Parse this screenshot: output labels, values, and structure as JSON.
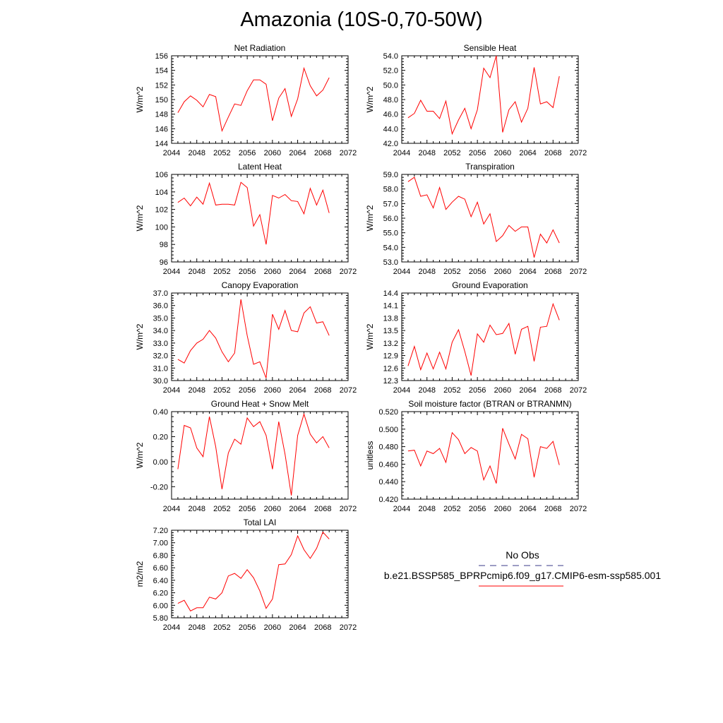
{
  "figure": {
    "title": "Amazonia (10S-0,70-50W)"
  },
  "legend": {
    "entries": [
      {
        "label": "No Obs",
        "color": "#3a3a8a",
        "dash": true
      },
      {
        "label": "b.e21.BSSP585_BPRPcmip6.f09_g17.CMIP6-esm-ssp585.001",
        "color": "#ff0000",
        "dash": false
      }
    ]
  },
  "chart_data": [
    {
      "type": "line",
      "title": "Net Radiation",
      "xlabel": "",
      "ylabel": "W/m^2",
      "xlim": [
        2044,
        2072
      ],
      "xticks": [
        2044,
        2048,
        2052,
        2056,
        2060,
        2064,
        2068,
        2072
      ],
      "ylim": [
        144,
        156
      ],
      "yticks": [
        "144",
        "146",
        "148",
        "150",
        "152",
        "154",
        "156"
      ],
      "series": [
        {
          "color": "#ff0000",
          "x": [
            2045,
            2046,
            2047,
            2048,
            2049,
            2050,
            2051,
            2052,
            2053,
            2054,
            2055,
            2056,
            2057,
            2058,
            2059,
            2060,
            2061,
            2062,
            2063,
            2064,
            2065,
            2066,
            2067,
            2068,
            2069
          ],
          "values": [
            148.2,
            149.7,
            150.5,
            149.9,
            149.0,
            150.7,
            150.4,
            145.7,
            147.6,
            149.4,
            149.2,
            151.2,
            152.7,
            152.7,
            152.1,
            147.1,
            150.2,
            151.5,
            147.7,
            150.1,
            154.3,
            151.9,
            150.5,
            151.3,
            153.0
          ]
        }
      ]
    },
    {
      "type": "line",
      "title": "Sensible Heat",
      "xlabel": "",
      "ylabel": "W/m^2",
      "xlim": [
        2044,
        2072
      ],
      "xticks": [
        2044,
        2048,
        2052,
        2056,
        2060,
        2064,
        2068,
        2072
      ],
      "ylim": [
        42.0,
        54.0
      ],
      "yticks": [
        "42.0",
        "44.0",
        "46.0",
        "48.0",
        "50.0",
        "52.0",
        "54.0"
      ],
      "series": [
        {
          "color": "#ff0000",
          "x": [
            2045,
            2046,
            2047,
            2048,
            2049,
            2050,
            2051,
            2052,
            2053,
            2054,
            2055,
            2056,
            2057,
            2058,
            2059,
            2060,
            2061,
            2062,
            2063,
            2064,
            2065,
            2066,
            2067,
            2068,
            2069
          ],
          "values": [
            45.5,
            46.1,
            47.9,
            46.4,
            46.4,
            45.4,
            47.8,
            43.3,
            45.2,
            46.8,
            44.0,
            46.6,
            52.3,
            51.0,
            54.0,
            43.5,
            46.6,
            47.7,
            44.9,
            46.8,
            52.4,
            47.4,
            47.7,
            46.9,
            51.2
          ]
        }
      ]
    },
    {
      "type": "line",
      "title": "Latent Heat",
      "xlabel": "",
      "ylabel": "W/m^2",
      "xlim": [
        2044,
        2072
      ],
      "xticks": [
        2044,
        2048,
        2052,
        2056,
        2060,
        2064,
        2068,
        2072
      ],
      "ylim": [
        96,
        106
      ],
      "yticks": [
        "96",
        "98",
        "100",
        "102",
        "104",
        "106"
      ],
      "series": [
        {
          "color": "#ff0000",
          "x": [
            2045,
            2046,
            2047,
            2048,
            2049,
            2050,
            2051,
            2052,
            2053,
            2054,
            2055,
            2056,
            2057,
            2058,
            2059,
            2060,
            2061,
            2062,
            2063,
            2064,
            2065,
            2066,
            2067,
            2068,
            2069
          ],
          "values": [
            102.8,
            103.3,
            102.4,
            103.4,
            102.6,
            105.0,
            102.5,
            102.6,
            102.6,
            102.5,
            105.1,
            104.5,
            100.1,
            101.4,
            98.0,
            103.6,
            103.3,
            103.7,
            103.0,
            102.9,
            101.5,
            104.4,
            102.5,
            104.2,
            101.6
          ]
        }
      ]
    },
    {
      "type": "line",
      "title": "Transpiration",
      "xlabel": "",
      "ylabel": "W/m^2",
      "xlim": [
        2044,
        2072
      ],
      "xticks": [
        2044,
        2048,
        2052,
        2056,
        2060,
        2064,
        2068,
        2072
      ],
      "ylim": [
        53.0,
        59.0
      ],
      "yticks": [
        "53.0",
        "54.0",
        "55.0",
        "56.0",
        "57.0",
        "58.0",
        "59.0"
      ],
      "series": [
        {
          "color": "#ff0000",
          "x": [
            2045,
            2046,
            2047,
            2048,
            2049,
            2050,
            2051,
            2052,
            2053,
            2054,
            2055,
            2056,
            2057,
            2058,
            2059,
            2060,
            2061,
            2062,
            2063,
            2064,
            2065,
            2066,
            2067,
            2068,
            2069
          ],
          "values": [
            58.5,
            58.8,
            57.5,
            57.6,
            56.7,
            58.1,
            56.6,
            57.1,
            57.5,
            57.3,
            56.1,
            57.1,
            55.6,
            56.3,
            54.4,
            54.8,
            55.5,
            55.1,
            55.4,
            55.4,
            53.3,
            54.9,
            54.3,
            55.2,
            54.3
          ]
        }
      ]
    },
    {
      "type": "line",
      "title": "Canopy Evaporation",
      "xlabel": "",
      "ylabel": "W/m^2",
      "xlim": [
        2044,
        2072
      ],
      "xticks": [
        2044,
        2048,
        2052,
        2056,
        2060,
        2064,
        2068,
        2072
      ],
      "ylim": [
        30.0,
        37.0
      ],
      "yticks": [
        "30.0",
        "31.0",
        "32.0",
        "33.0",
        "34.0",
        "35.0",
        "36.0",
        "37.0"
      ],
      "series": [
        {
          "color": "#ff0000",
          "x": [
            2045,
            2046,
            2047,
            2048,
            2049,
            2050,
            2051,
            2052,
            2053,
            2054,
            2055,
            2056,
            2057,
            2058,
            2059,
            2060,
            2061,
            2062,
            2063,
            2064,
            2065,
            2066,
            2067,
            2068,
            2069
          ],
          "values": [
            31.7,
            31.4,
            32.4,
            33.0,
            33.3,
            34.0,
            33.4,
            32.3,
            31.5,
            32.2,
            36.5,
            33.6,
            31.3,
            31.5,
            30.2,
            35.3,
            34.1,
            35.6,
            34.0,
            33.9,
            35.4,
            35.9,
            34.6,
            34.7,
            33.6
          ]
        }
      ]
    },
    {
      "type": "line",
      "title": "Ground Evaporation",
      "xlabel": "",
      "ylabel": "W/m^2",
      "xlim": [
        2044,
        2072
      ],
      "xticks": [
        2044,
        2048,
        2052,
        2056,
        2060,
        2064,
        2068,
        2072
      ],
      "ylim": [
        12.3,
        14.4
      ],
      "yticks": [
        "12.3",
        "12.6",
        "12.9",
        "13.2",
        "13.5",
        "13.8",
        "14.1",
        "14.4"
      ],
      "series": [
        {
          "color": "#ff0000",
          "x": [
            2045,
            2046,
            2047,
            2048,
            2049,
            2050,
            2051,
            2052,
            2053,
            2054,
            2055,
            2056,
            2057,
            2058,
            2059,
            2060,
            2061,
            2062,
            2063,
            2064,
            2065,
            2066,
            2067,
            2068,
            2069
          ],
          "values": [
            12.65,
            13.12,
            12.56,
            12.96,
            12.58,
            12.98,
            12.58,
            13.22,
            13.52,
            13.0,
            12.42,
            13.42,
            13.22,
            13.63,
            13.4,
            13.43,
            13.67,
            12.93,
            13.53,
            13.6,
            12.76,
            13.58,
            13.6,
            14.14,
            13.75
          ]
        }
      ]
    },
    {
      "type": "line",
      "title": "Ground Heat + Snow Melt",
      "xlabel": "",
      "ylabel": "W/m^2",
      "xlim": [
        2044,
        2072
      ],
      "xticks": [
        2044,
        2048,
        2052,
        2056,
        2060,
        2064,
        2068,
        2072
      ],
      "ylim": [
        -0.3,
        0.4
      ],
      "yticks": [
        "-0.20",
        "0.00",
        "0.20",
        "0.40"
      ],
      "series": [
        {
          "color": "#ff0000",
          "x": [
            2045,
            2046,
            2047,
            2048,
            2049,
            2050,
            2051,
            2052,
            2053,
            2054,
            2055,
            2056,
            2057,
            2058,
            2059,
            2060,
            2061,
            2062,
            2063,
            2064,
            2065,
            2066,
            2067,
            2068,
            2069
          ],
          "values": [
            -0.06,
            0.29,
            0.27,
            0.11,
            0.04,
            0.36,
            0.12,
            -0.22,
            0.07,
            0.18,
            0.14,
            0.35,
            0.28,
            0.32,
            0.21,
            -0.06,
            0.32,
            0.06,
            -0.27,
            0.21,
            0.38,
            0.22,
            0.15,
            0.2,
            0.11
          ]
        }
      ]
    },
    {
      "type": "line",
      "title": "Soil moisture factor (BTRAN or BTRANMN)",
      "xlabel": "",
      "ylabel": "unitless",
      "xlim": [
        2044,
        2072
      ],
      "xticks": [
        2044,
        2048,
        2052,
        2056,
        2060,
        2064,
        2068,
        2072
      ],
      "ylim": [
        0.42,
        0.52
      ],
      "yticks": [
        "0.420",
        "0.440",
        "0.460",
        "0.480",
        "0.500",
        "0.520"
      ],
      "series": [
        {
          "color": "#ff0000",
          "x": [
            2045,
            2046,
            2047,
            2048,
            2049,
            2050,
            2051,
            2052,
            2053,
            2054,
            2055,
            2056,
            2057,
            2058,
            2059,
            2060,
            2061,
            2062,
            2063,
            2064,
            2065,
            2066,
            2067,
            2068,
            2069
          ],
          "values": [
            0.475,
            0.476,
            0.458,
            0.475,
            0.472,
            0.478,
            0.462,
            0.496,
            0.488,
            0.472,
            0.479,
            0.475,
            0.442,
            0.458,
            0.438,
            0.501,
            0.483,
            0.466,
            0.494,
            0.489,
            0.445,
            0.48,
            0.478,
            0.486,
            0.459
          ]
        }
      ]
    },
    {
      "type": "line",
      "title": "Total LAI",
      "xlabel": "",
      "ylabel": "m2/m2",
      "xlim": [
        2044,
        2072
      ],
      "xticks": [
        2044,
        2048,
        2052,
        2056,
        2060,
        2064,
        2068,
        2072
      ],
      "ylim": [
        5.8,
        7.2
      ],
      "yticks": [
        "5.80",
        "6.00",
        "6.20",
        "6.40",
        "6.60",
        "6.80",
        "7.00",
        "7.20"
      ],
      "series": [
        {
          "color": "#ff0000",
          "x": [
            2045,
            2046,
            2047,
            2048,
            2049,
            2050,
            2051,
            2052,
            2053,
            2054,
            2055,
            2056,
            2057,
            2058,
            2059,
            2060,
            2061,
            2062,
            2063,
            2064,
            2065,
            2066,
            2067,
            2068,
            2069
          ],
          "values": [
            6.03,
            6.08,
            5.91,
            5.96,
            5.96,
            6.13,
            6.1,
            6.2,
            6.47,
            6.51,
            6.43,
            6.57,
            6.44,
            6.23,
            5.95,
            6.1,
            6.65,
            6.66,
            6.81,
            7.11,
            6.89,
            6.75,
            6.91,
            7.17,
            7.06
          ]
        }
      ]
    }
  ]
}
